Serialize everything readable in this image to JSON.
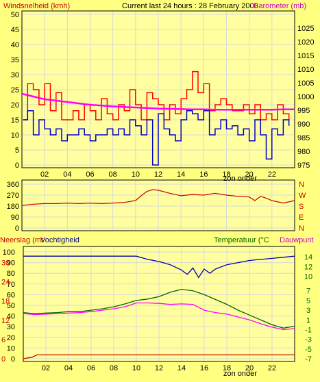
{
  "header": {
    "wind_label": "Windsnelheid (kmh)",
    "title": "Current last 24 hours : 28 February 2006",
    "baro_label": "Barometer (mb)"
  },
  "footer": {
    "sunset_label": "zon onder"
  },
  "colors": {
    "background": "#ffff80",
    "plot_bg": "#ffffa0",
    "grid": "#d8d8d8",
    "wind_max": "#ff0000",
    "wind_avg": "#0000cc",
    "barometer": "#ff00ff",
    "wind_dir": "#cc0000",
    "humidity": "#0000aa",
    "temperature": "#006600",
    "dewpoint": "#ff00ff",
    "rain": "#cc0000",
    "label_red": "#cc0000",
    "label_magenta": "#cc00cc",
    "label_blue": "#000099",
    "label_green": "#006600"
  },
  "chart_data": [
    {
      "id": "wind-baro",
      "type": "line",
      "title": "Current last 24 hours : 28 February 2006",
      "ylabel_left": "Windsnelheid (kmh)",
      "ylabel_right": "Barometer (mb)",
      "ylim_left": [
        0,
        50
      ],
      "ylim_right": [
        975,
        1030
      ],
      "yticks_left": [
        0,
        5,
        10,
        15,
        20,
        25,
        30,
        35,
        40,
        45,
        50
      ],
      "yticks_right": [
        975,
        980,
        985,
        990,
        995,
        1000,
        1005,
        1010,
        1015,
        1020,
        1025
      ],
      "xlim": [
        0,
        24
      ],
      "xticks": [
        "02",
        "04",
        "06",
        "08",
        "10",
        "12",
        "14",
        "16",
        "18",
        "20",
        "22"
      ],
      "xtick_values": [
        2,
        4,
        6,
        8,
        10,
        12,
        14,
        16,
        18,
        20,
        22
      ],
      "annotation": {
        "text": "zon onder",
        "x": 18.3
      },
      "series": [
        {
          "key": "wind_max",
          "x": [
            0.1,
            0.5,
            1,
            1.5,
            2,
            2.5,
            3,
            3.5,
            4,
            4.5,
            5,
            5.5,
            6,
            6.5,
            7,
            7.5,
            8,
            8.5,
            9,
            9.5,
            10,
            10.5,
            11,
            11.5,
            12,
            12.5,
            13,
            13.5,
            14,
            14.5,
            15,
            15.5,
            16,
            16.5,
            17,
            17.5,
            18,
            18.5,
            19,
            19.5,
            20,
            20.5,
            21,
            21.5,
            22,
            22.5,
            23,
            23.5
          ],
          "y": [
            15,
            27,
            25,
            20,
            27,
            18,
            24,
            15,
            15,
            18,
            15,
            20,
            18,
            15,
            22,
            17,
            15,
            20,
            18,
            25,
            20,
            15,
            24,
            22,
            20,
            15,
            20,
            17,
            22,
            25,
            31,
            24,
            27,
            18,
            20,
            22,
            20,
            18,
            18,
            20,
            17,
            20,
            15,
            17,
            15,
            20,
            17,
            15
          ]
        },
        {
          "key": "wind_avg",
          "x": [
            0.1,
            0.5,
            1,
            1.5,
            2,
            2.5,
            3,
            3.5,
            4,
            4.5,
            5,
            5.5,
            6,
            6.5,
            7,
            7.5,
            8,
            8.5,
            9,
            9.5,
            10,
            10.5,
            11,
            11.5,
            12,
            12.5,
            13,
            13.5,
            14,
            14.5,
            15,
            15.5,
            16,
            16.5,
            17,
            17.5,
            18,
            18.5,
            19,
            19.5,
            20,
            20.5,
            21,
            21.5,
            22,
            22.5,
            23,
            23.5
          ],
          "y": [
            15,
            18,
            10,
            15,
            12,
            10,
            12,
            8,
            10,
            10,
            12,
            10,
            8,
            10,
            10,
            12,
            10,
            12,
            10,
            15,
            13,
            10,
            15,
            0,
            17,
            12,
            10,
            8,
            15,
            18,
            17,
            15,
            18,
            10,
            12,
            15,
            12,
            13,
            10,
            12,
            8,
            15,
            10,
            2,
            12,
            10,
            15,
            13
          ]
        },
        {
          "key": "barometer",
          "axis": "right",
          "x": [
            0,
            1,
            2,
            3,
            4,
            5,
            6,
            7,
            8,
            9,
            10,
            11,
            12,
            13,
            14,
            15,
            16,
            17,
            18,
            19,
            20,
            21,
            22,
            23,
            24
          ],
          "y": [
            1001,
            1000,
            999,
            998.5,
            998,
            997.5,
            997,
            996.7,
            996.4,
            996.2,
            996,
            995.8,
            995.6,
            995.5,
            995.4,
            995.3,
            995.3,
            995.2,
            995.2,
            995.2,
            995.2,
            995.2,
            995.2,
            995.3,
            995.3
          ]
        }
      ]
    },
    {
      "id": "wind-direction",
      "type": "line",
      "ylim": [
        0,
        360
      ],
      "yticks": [
        0,
        90,
        180,
        270,
        360
      ],
      "ytick_labels_right": [
        "N",
        "W",
        "S",
        "E",
        "N"
      ],
      "xlim": [
        0,
        24
      ],
      "series": [
        {
          "key": "wind_dir",
          "x": [
            0,
            1,
            2,
            3,
            4,
            5,
            6,
            7,
            8,
            9,
            10,
            10.5,
            11,
            11.5,
            12,
            13,
            14,
            15,
            16,
            17,
            18,
            19,
            20,
            20.5,
            21,
            21.5,
            22,
            23,
            24
          ],
          "y": [
            185,
            195,
            200,
            200,
            205,
            200,
            205,
            200,
            205,
            210,
            225,
            265,
            300,
            315,
            310,
            285,
            265,
            275,
            270,
            285,
            270,
            260,
            255,
            225,
            260,
            245,
            225,
            205,
            225
          ]
        }
      ]
    },
    {
      "id": "climate",
      "type": "line",
      "ylabel_left": "Neerslag (mr",
      "ylabel_left2": "Vochtigheid",
      "ylabel_right": "Temperatuur (°C",
      "ylabel_right2": "Dauwpunt",
      "ylim_humidity": [
        0,
        100
      ],
      "yticks_humidity": [
        0,
        10,
        20,
        30,
        40,
        50,
        60,
        70,
        80,
        90,
        100
      ],
      "yticks_rain": [
        0,
        6,
        12,
        18,
        24,
        30
      ],
      "ylim_temp": [
        -7,
        15
      ],
      "yticks_temp": [
        -7,
        -5,
        -3,
        -1,
        1,
        3,
        5,
        7,
        10,
        12,
        14
      ],
      "xlim": [
        0,
        24
      ],
      "xticks": [
        "02",
        "04",
        "06",
        "08",
        "10",
        "12",
        "14",
        "16",
        "18",
        "20",
        "22"
      ],
      "xtick_values": [
        2,
        4,
        6,
        8,
        10,
        12,
        14,
        16,
        18,
        20,
        22
      ],
      "annotation": {
        "text": "zon onder",
        "x": 18.3
      },
      "series": [
        {
          "key": "humidity",
          "x": [
            0,
            2,
            4,
            6,
            8,
            9,
            10,
            11,
            12,
            13,
            14,
            14.5,
            15,
            15.5,
            16,
            16.5,
            17,
            18,
            19,
            20,
            21,
            22,
            23,
            24
          ],
          "y": [
            96,
            96,
            96,
            96,
            96,
            96,
            96,
            93,
            91,
            88,
            83,
            79,
            85,
            76,
            84,
            80,
            84,
            88,
            90,
            92,
            93,
            94,
            95,
            96
          ]
        },
        {
          "key": "temperature",
          "x": [
            0,
            1,
            2,
            3,
            4,
            5,
            6,
            7,
            8,
            9,
            10,
            11,
            12,
            13,
            14,
            15,
            16,
            17,
            18,
            19,
            20,
            21,
            22,
            23,
            24
          ],
          "y": [
            2.5,
            2.3,
            2.4,
            2.5,
            2.7,
            2.7,
            3,
            3.3,
            3.7,
            4.3,
            5,
            5.3,
            5.8,
            6.7,
            7.3,
            7,
            6.2,
            5.2,
            4.2,
            3,
            2,
            1,
            0,
            -0.7,
            -0.3
          ]
        },
        {
          "key": "dewpoint",
          "x": [
            0,
            1,
            2,
            3,
            4,
            5,
            6,
            7,
            8,
            9,
            10,
            11,
            12,
            13,
            14,
            15,
            16,
            17,
            18,
            19,
            20,
            21,
            22,
            23,
            24
          ],
          "y": [
            2.3,
            2.1,
            2.2,
            2.3,
            2.4,
            2.5,
            2.7,
            3,
            3.3,
            3.7,
            4.5,
            4.5,
            4.4,
            4.2,
            4.3,
            4.2,
            3,
            2.5,
            2.2,
            1.6,
            1,
            0.2,
            -0.5,
            -1,
            -0.8
          ]
        },
        {
          "key": "rain",
          "axis": "rain",
          "x": [
            0,
            0.8,
            1.2,
            24
          ],
          "y": [
            0,
            0.5,
            1.2,
            1.2
          ]
        }
      ]
    }
  ]
}
